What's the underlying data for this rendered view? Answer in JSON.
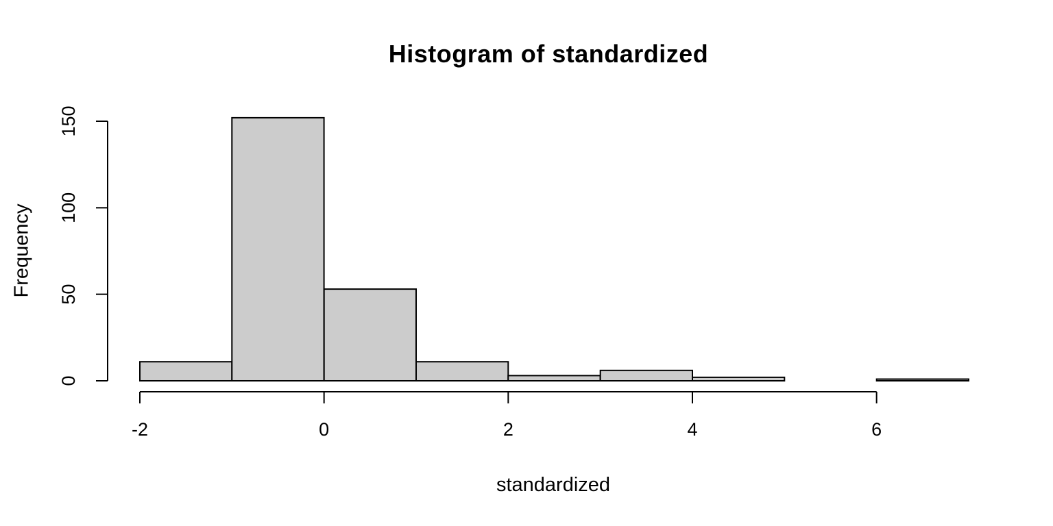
{
  "chart_data": {
    "type": "bar",
    "subtype": "histogram",
    "title": "Histogram of standardized",
    "xlabel": "standardized",
    "ylabel": "Frequency",
    "bin_breaks": [
      -2,
      -1,
      0,
      1,
      2,
      3,
      4,
      5,
      6,
      7
    ],
    "counts": [
      11,
      152,
      53,
      11,
      3,
      6,
      2,
      0,
      1
    ],
    "x_ticks": [
      -2,
      0,
      2,
      4,
      6
    ],
    "y_ticks": [
      0,
      50,
      100,
      150
    ],
    "xlim": [
      -2,
      7
    ],
    "ylim": [
      0,
      150
    ],
    "grid": false,
    "legend": false,
    "colors": {
      "bar_fill": "#CCCCCC",
      "bar_border": "#000000",
      "axis": "#000000",
      "background": "#FFFFFF"
    }
  }
}
